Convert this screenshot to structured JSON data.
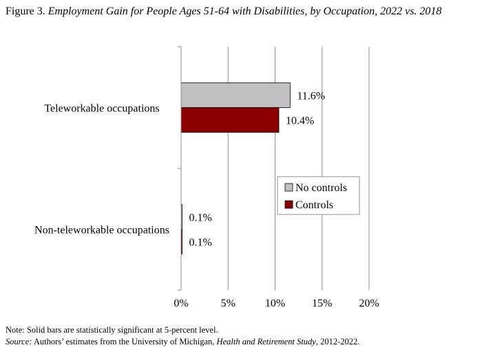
{
  "title": {
    "prefix": "Figure 3. ",
    "text": "Employment Gain for People Ages 51-64 with Disabilities, by Occupation, 2022 vs. 2018"
  },
  "chart_data": {
    "type": "bar",
    "orientation": "horizontal",
    "categories": [
      "Teleworkable occupations",
      "Non-teleworkable occupations"
    ],
    "series": [
      {
        "name": "No controls",
        "values": [
          11.6,
          0.1
        ],
        "labels": [
          "11.6%",
          "0.1%"
        ],
        "color": "#c0c0c0"
      },
      {
        "name": "Controls",
        "values": [
          10.4,
          0.1
        ],
        "labels": [
          "10.4%",
          "0.1%"
        ],
        "color": "#8b0000"
      }
    ],
    "xlim": [
      0,
      20
    ],
    "xticks": [
      0,
      5,
      10,
      15,
      20
    ],
    "xtick_labels": [
      "0%",
      "5%",
      "10%",
      "15%",
      "20%"
    ],
    "grid": "vertical",
    "legend": "right-middle"
  },
  "note": "Note: Solid bars are statistically significant at 5-percent level.",
  "source": {
    "label": "Source:",
    "text_before": " Authors’ estimates from the University of Michigan, ",
    "study": "Health and Retirement Study",
    "text_after": ", 2012-2022."
  }
}
